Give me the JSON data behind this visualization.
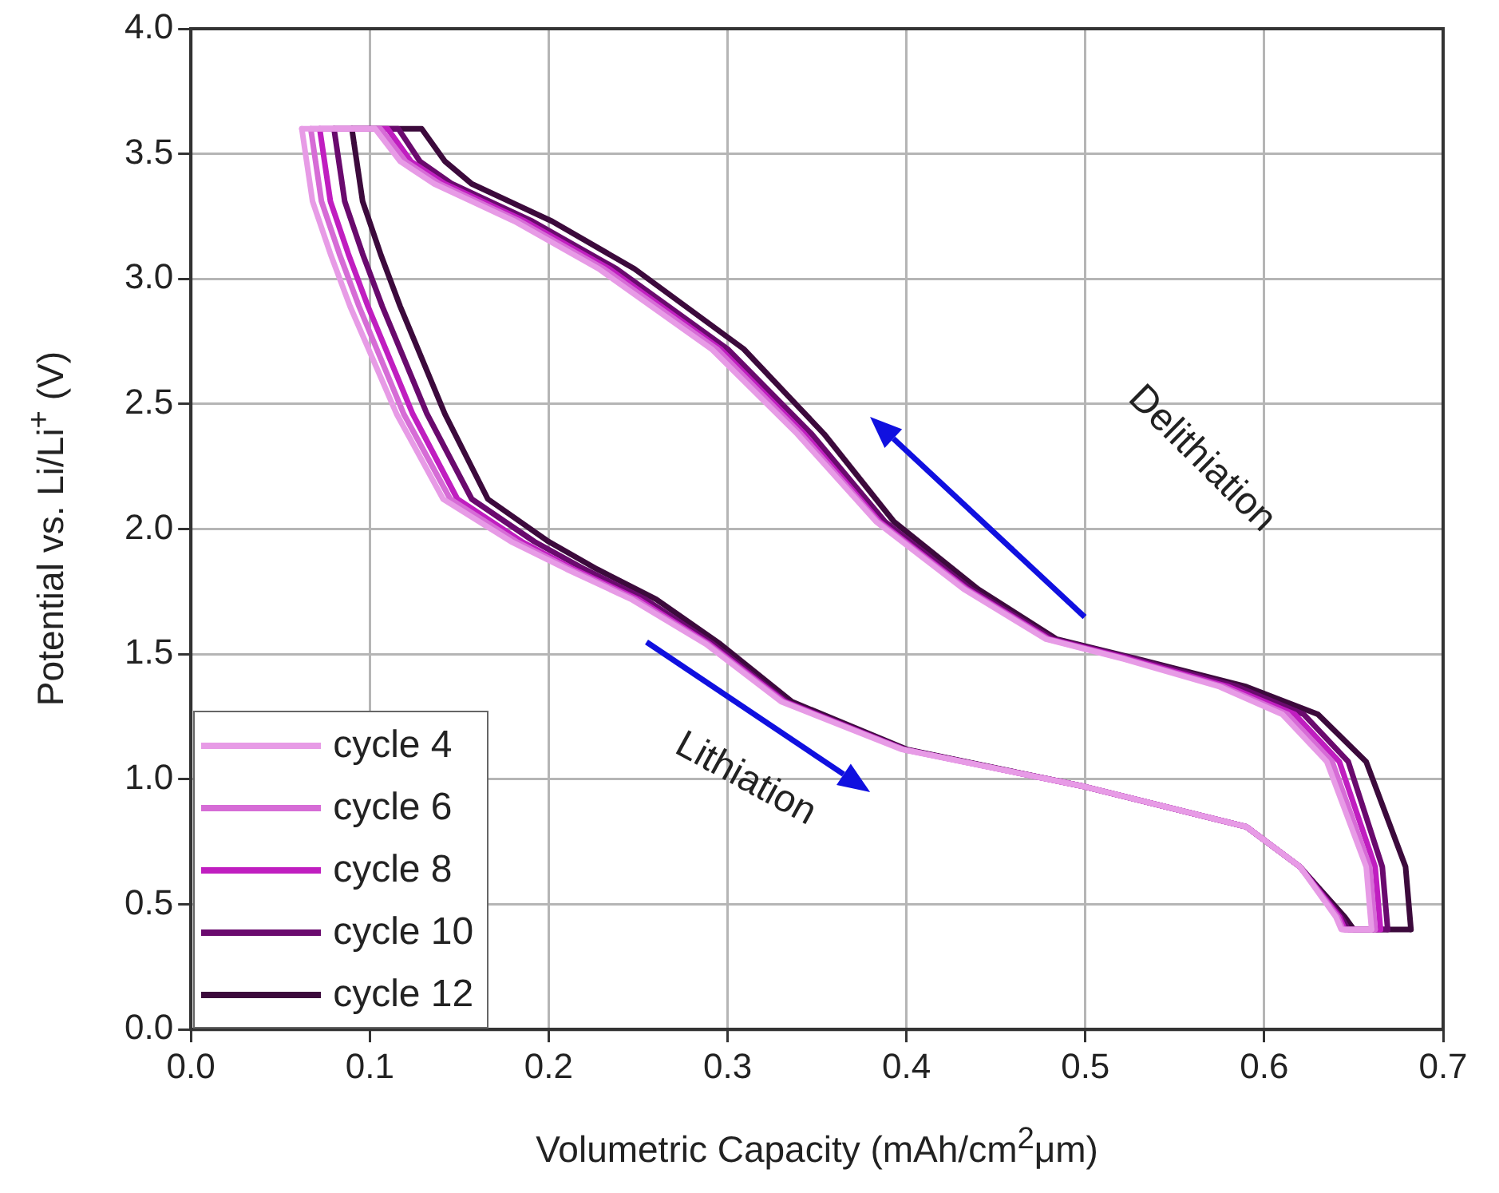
{
  "chart_data": {
    "type": "line",
    "xlabel": "Volumetric Capacity (mAh/cm$^{2}$μm)",
    "ylabel": "Potential vs. Li/Li$^{+}$ (V)",
    "xlim": [
      0,
      0.7
    ],
    "ylim": [
      0,
      4
    ],
    "xticks": [
      {
        "value": 0,
        "label": "0.0"
      },
      {
        "value": 0.1,
        "label": "0.1"
      },
      {
        "value": 0.2,
        "label": "0.2"
      },
      {
        "value": 0.3,
        "label": "0.3"
      },
      {
        "value": 0.4,
        "label": "0.4"
      },
      {
        "value": 0.5,
        "label": "0.5"
      },
      {
        "value": 0.6,
        "label": "0.6"
      },
      {
        "value": 0.7,
        "label": "0.7"
      }
    ],
    "yticks": [
      {
        "value": 0,
        "label": "0.0"
      },
      {
        "value": 0.5,
        "label": "0.5"
      },
      {
        "value": 1,
        "label": "1.0"
      },
      {
        "value": 1.5,
        "label": "1.5"
      },
      {
        "value": 2,
        "label": "2.0"
      },
      {
        "value": 2.5,
        "label": "2.5"
      },
      {
        "value": 3,
        "label": "3.0"
      },
      {
        "value": 3.5,
        "label": "3.5"
      },
      {
        "value": 4,
        "label": "4.0"
      }
    ],
    "grid": true,
    "legend": "bottom left",
    "marker": "none",
    "line_style": "solid",
    "annotations": [
      "Delithiation",
      "Lithiation"
    ],
    "series": [
      {
        "name": "cycle 4",
        "color": "#e79be6",
        "x": [
          0.062,
          0.068,
          0.078,
          0.089,
          0.115,
          0.141,
          0.179,
          0.21,
          0.246,
          0.288,
          0.33,
          0.397,
          0.5,
          0.59,
          0.62,
          0.64,
          0.643,
          0.66
        ],
        "values": [
          3.6,
          3.31,
          3.1,
          2.89,
          2.46,
          2.12,
          1.95,
          1.84,
          1.72,
          1.54,
          1.31,
          1.12,
          0.97,
          0.81,
          0.65,
          0.45,
          0.4,
          0.4
        ]
      },
      {
        "color": "#e79be6",
        "x": [
          0.66,
          0.657,
          0.635,
          0.61,
          0.575,
          0.522,
          0.478,
          0.432,
          0.383,
          0.339,
          0.291,
          0.228,
          0.181,
          0.136,
          0.117,
          0.103,
          0.062
        ],
        "values": [
          0.4,
          0.65,
          1.07,
          1.26,
          1.37,
          1.48,
          1.56,
          1.76,
          2.03,
          2.38,
          2.72,
          3.04,
          3.23,
          3.38,
          3.47,
          3.6,
          3.6
        ]
      },
      {
        "name": "cycle 6",
        "color": "#d66cd6",
        "x": [
          0.067,
          0.073,
          0.083,
          0.094,
          0.119,
          0.145,
          0.182,
          0.212,
          0.248,
          0.289,
          0.331,
          0.398,
          0.5,
          0.59,
          0.62,
          0.641,
          0.644,
          0.662
        ],
        "values": [
          3.6,
          3.31,
          3.1,
          2.89,
          2.46,
          2.12,
          1.95,
          1.84,
          1.72,
          1.54,
          1.31,
          1.12,
          0.97,
          0.81,
          0.65,
          0.45,
          0.4,
          0.4
        ]
      },
      {
        "color": "#d66cd6",
        "x": [
          0.662,
          0.659,
          0.638,
          0.613,
          0.577,
          0.523,
          0.479,
          0.433,
          0.384,
          0.341,
          0.294,
          0.231,
          0.184,
          0.139,
          0.12,
          0.106,
          0.067
        ],
        "values": [
          0.4,
          0.65,
          1.07,
          1.26,
          1.37,
          1.48,
          1.56,
          1.76,
          2.03,
          2.38,
          2.72,
          3.04,
          3.23,
          3.38,
          3.47,
          3.6,
          3.6
        ]
      },
      {
        "name": "cycle 8",
        "color": "#c01ec0",
        "x": [
          0.072,
          0.078,
          0.088,
          0.099,
          0.124,
          0.149,
          0.185,
          0.214,
          0.25,
          0.29,
          0.332,
          0.398,
          0.5,
          0.59,
          0.62,
          0.642,
          0.645,
          0.665
        ],
        "values": [
          3.6,
          3.31,
          3.1,
          2.89,
          2.46,
          2.12,
          1.95,
          1.84,
          1.72,
          1.54,
          1.31,
          1.12,
          0.97,
          0.81,
          0.65,
          0.45,
          0.4,
          0.4
        ]
      },
      {
        "color": "#c01ec0",
        "x": [
          0.665,
          0.662,
          0.642,
          0.617,
          0.58,
          0.525,
          0.48,
          0.434,
          0.385,
          0.343,
          0.296,
          0.234,
          0.187,
          0.142,
          0.123,
          0.11,
          0.072
        ],
        "values": [
          0.4,
          0.65,
          1.07,
          1.26,
          1.37,
          1.48,
          1.56,
          1.76,
          2.03,
          2.38,
          2.72,
          3.04,
          3.23,
          3.38,
          3.47,
          3.6,
          3.6
        ]
      },
      {
        "name": "cycle 10",
        "color": "#6a0a6e",
        "x": [
          0.08,
          0.086,
          0.096,
          0.107,
          0.132,
          0.157,
          0.192,
          0.22,
          0.254,
          0.292,
          0.333,
          0.399,
          0.5,
          0.59,
          0.62,
          0.643,
          0.647,
          0.669
        ],
        "values": [
          3.6,
          3.31,
          3.1,
          2.89,
          2.46,
          2.12,
          1.95,
          1.84,
          1.72,
          1.54,
          1.31,
          1.12,
          0.97,
          0.81,
          0.65,
          0.45,
          0.4,
          0.4
        ]
      },
      {
        "color": "#6a0a6e",
        "x": [
          0.669,
          0.666,
          0.647,
          0.622,
          0.585,
          0.528,
          0.482,
          0.436,
          0.388,
          0.347,
          0.3,
          0.238,
          0.191,
          0.146,
          0.128,
          0.116,
          0.08
        ],
        "values": [
          0.4,
          0.65,
          1.07,
          1.26,
          1.37,
          1.48,
          1.56,
          1.76,
          2.03,
          2.38,
          2.72,
          3.04,
          3.23,
          3.38,
          3.47,
          3.6,
          3.6
        ]
      },
      {
        "name": "cycle 12",
        "color": "#3c0a3c",
        "x": [
          0.09,
          0.096,
          0.106,
          0.117,
          0.142,
          0.166,
          0.2,
          0.227,
          0.26,
          0.296,
          0.336,
          0.4,
          0.5,
          0.59,
          0.62,
          0.645,
          0.65,
          0.682
        ],
        "values": [
          3.6,
          3.31,
          3.1,
          2.89,
          2.46,
          2.12,
          1.95,
          1.84,
          1.72,
          1.54,
          1.31,
          1.12,
          0.97,
          0.81,
          0.65,
          0.45,
          0.4,
          0.4
        ]
      },
      {
        "color": "#3c0a3c",
        "x": [
          0.682,
          0.679,
          0.657,
          0.63,
          0.59,
          0.53,
          0.484,
          0.44,
          0.393,
          0.354,
          0.309,
          0.248,
          0.202,
          0.157,
          0.142,
          0.129,
          0.09
        ],
        "values": [
          0.4,
          0.65,
          1.07,
          1.26,
          1.37,
          1.48,
          1.56,
          1.76,
          2.03,
          2.38,
          2.72,
          3.04,
          3.23,
          3.38,
          3.47,
          3.6,
          3.6
        ]
      }
    ]
  }
}
